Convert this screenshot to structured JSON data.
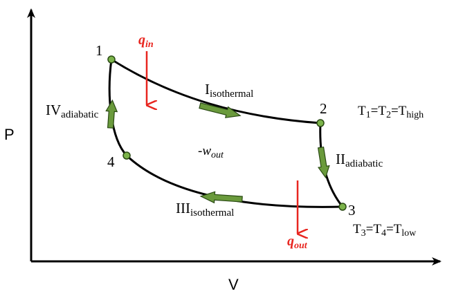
{
  "axes": {
    "y_label": "P",
    "x_label": "V"
  },
  "states": [
    {
      "id": "1",
      "label": "1"
    },
    {
      "id": "2",
      "label": "2"
    },
    {
      "id": "3",
      "label": "3"
    },
    {
      "id": "4",
      "label": "4"
    }
  ],
  "processes": [
    {
      "numeral": "I",
      "subscript": "isothermal"
    },
    {
      "numeral": "II",
      "subscript": "adiabatic"
    },
    {
      "numeral": "III",
      "subscript": "isothermal"
    },
    {
      "numeral": "IV",
      "subscript": "adiabatic"
    }
  ],
  "heat": {
    "in": {
      "symbol": "q",
      "subscript": "in"
    },
    "out": {
      "symbol": "q",
      "subscript": "out"
    }
  },
  "work": {
    "prefix": "-",
    "symbol": "w",
    "subscript": "out"
  },
  "temperatures": {
    "high": {
      "a": "T",
      "a_sub": "1",
      "eq1": "=T",
      "b_sub": "2",
      "eq2": "=T",
      "c_sub": "high"
    },
    "low": {
      "a": "T",
      "a_sub": "3",
      "eq1": "=T",
      "b_sub": "4",
      "eq2": "=T",
      "c_sub": "low"
    }
  },
  "colors": {
    "line": "#000000",
    "heat_arrow": "#e8251f",
    "direction_arrow": "#6a9a3c",
    "state_point": "#7bb34a"
  }
}
